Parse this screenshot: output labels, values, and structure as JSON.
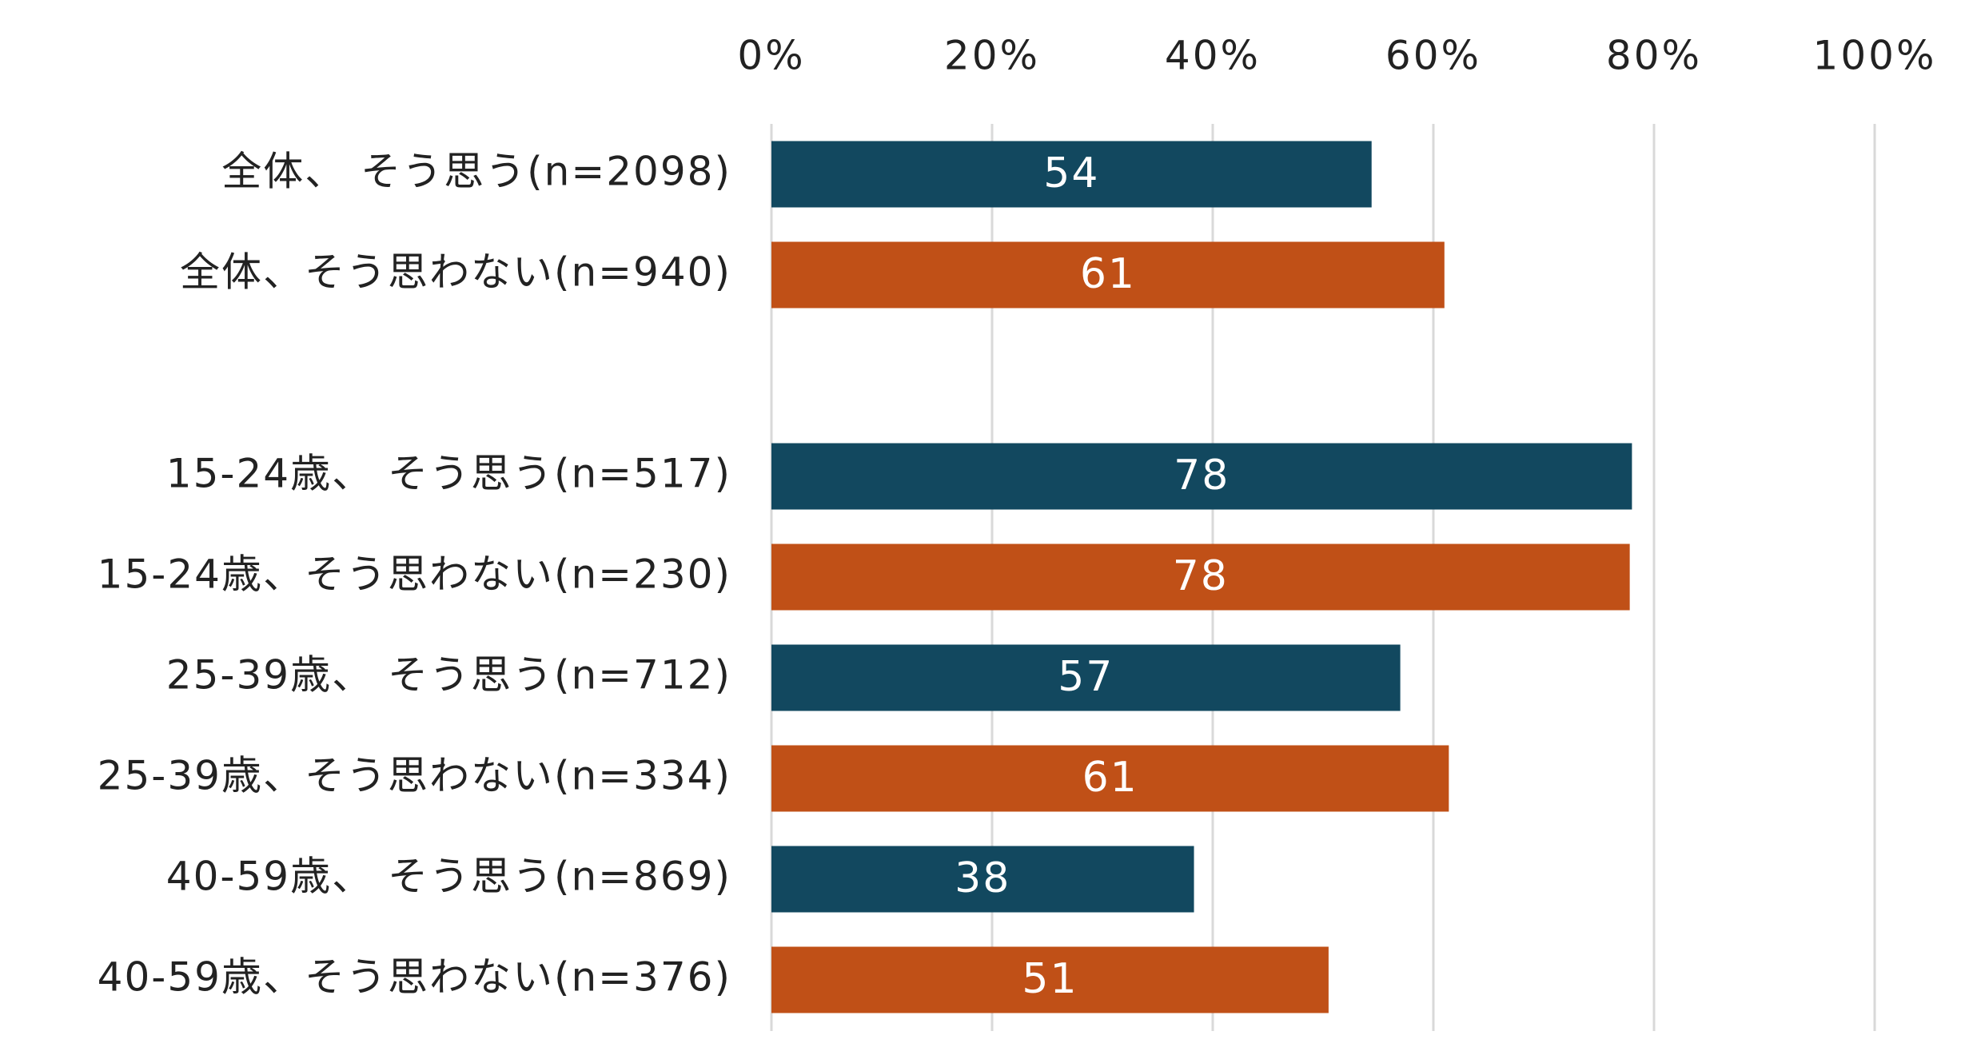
{
  "chart_data": {
    "type": "bar",
    "orientation": "horizontal",
    "title": "",
    "xlabel": "",
    "ylabel": "",
    "xlim": [
      0,
      100
    ],
    "x_ticks": [
      "0%",
      "20%",
      "40%",
      "60%",
      "80%",
      "100%"
    ],
    "x_tick_values": [
      0,
      20,
      40,
      60,
      80,
      100
    ],
    "x_axis_position": "top",
    "grid": "vertical",
    "legend": "none",
    "colors": {
      "think_so": "#12485f",
      "dont_think_so": "#c05017",
      "grid": "#d9d9d9",
      "text": "#222222",
      "data_label": "#ffffff"
    },
    "categories": [
      "全体、 そう思う(n=2098)",
      "全体、そう思わない(n=940)",
      "",
      "15-24歳、 そう思う(n=517)",
      "15-24歳、そう思わない(n=230)",
      "25-39歳、 そう思う(n=712)",
      "25-39歳、そう思わない(n=334)",
      "40-59歳、 そう思う(n=869)",
      "40-59歳、そう思わない(n=376)"
    ],
    "values": [
      54.4,
      61,
      null,
      78,
      77.8,
      57,
      61.4,
      38.3,
      50.5
    ],
    "data_labels": [
      "54",
      "61",
      "",
      "78",
      "78",
      "57",
      "61",
      "38",
      "51"
    ],
    "bar_groups": [
      "think_so",
      "dont_think_so",
      "",
      "think_so",
      "dont_think_so",
      "think_so",
      "dont_think_so",
      "think_so",
      "dont_think_so"
    ]
  }
}
